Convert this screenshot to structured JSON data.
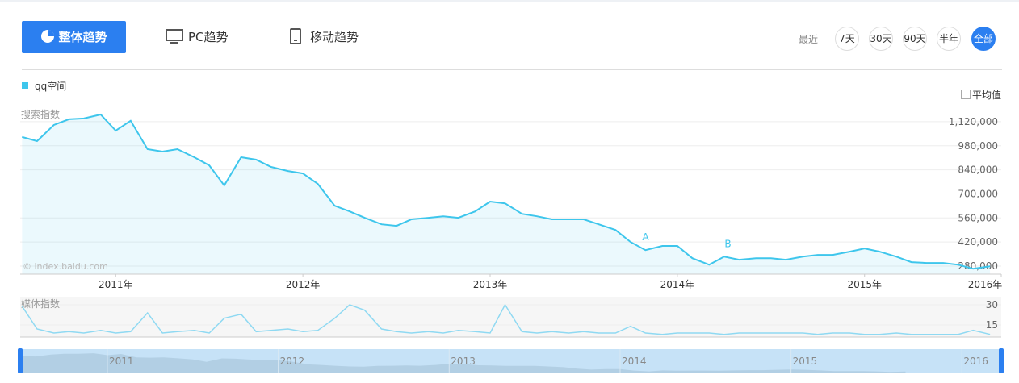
{
  "tabs": [
    "整体趋势",
    "PC趋势",
    "移动趋势"
  ],
  "range_label": "最近",
  "ranges": [
    "7天",
    "30天",
    "90天",
    "半年",
    "全部"
  ],
  "average_label": "平均值",
  "watermark": "© index.baidu.com",
  "chart_data": [
    {
      "type": "line",
      "title": "搜索指数",
      "x": [
        2010.5,
        2010.58,
        2010.67,
        2010.75,
        2010.83,
        2010.92,
        2011,
        2011.08,
        2011.17,
        2011.25,
        2011.33,
        2011.42,
        2011.5,
        2011.58,
        2011.67,
        2011.75,
        2011.83,
        2011.92,
        2012,
        2012.08,
        2012.17,
        2012.25,
        2012.33,
        2012.42,
        2012.5,
        2012.58,
        2012.67,
        2012.75,
        2012.83,
        2012.92,
        2013,
        2013.08,
        2013.17,
        2013.25,
        2013.33,
        2013.42,
        2013.5,
        2013.58,
        2013.67,
        2013.75,
        2013.83,
        2013.92,
        2014,
        2014.08,
        2014.17,
        2014.25,
        2014.33,
        2014.42,
        2014.5,
        2014.58,
        2014.67,
        2014.75,
        2014.83,
        2014.92,
        2015,
        2015.08,
        2015.17,
        2015.25,
        2015.33,
        2015.42,
        2015.5,
        2015.58,
        2015.67
      ],
      "series": [
        {
          "name": "qq空间",
          "color": "#3ec6ec",
          "values": [
            1031000,
            1007000,
            1101000,
            1134000,
            1139000,
            1162000,
            1068000,
            1125000,
            960000,
            946000,
            960000,
            913000,
            866000,
            749000,
            913000,
            899000,
            857000,
            833000,
            819000,
            758000,
            631000,
            598000,
            561000,
            523000,
            514000,
            552000,
            561000,
            570000,
            561000,
            598000,
            655000,
            645000,
            584000,
            570000,
            552000,
            552000,
            552000,
            523000,
            490000,
            420000,
            373000,
            397000,
            397000,
            326000,
            288000,
            335000,
            317000,
            326000,
            326000,
            317000,
            335000,
            345000,
            345000,
            364000,
            382000,
            364000,
            335000,
            303000,
            298000,
            298000,
            288000,
            265000,
            279000
          ]
        }
      ],
      "xlim": [
        2010.49,
        2015.73
      ],
      "xticks": [
        {
          "value": 2011,
          "label": "2011年"
        },
        {
          "value": 2012,
          "label": "2012年"
        },
        {
          "value": 2013,
          "label": "2013年"
        },
        {
          "value": 2014,
          "label": "2014年"
        },
        {
          "value": 2015,
          "label": "2015年"
        },
        {
          "value": 2016,
          "label": "2016年"
        }
      ],
      "ylim": [
        233000,
        1204000
      ],
      "yticks": [
        {
          "value": 280000,
          "label": "280,000"
        },
        {
          "value": 420000,
          "label": "420,000"
        },
        {
          "value": 560000,
          "label": "560,000"
        },
        {
          "value": 700000,
          "label": "700,000"
        },
        {
          "value": 840000,
          "label": "840,000"
        },
        {
          "value": 980000,
          "label": "980,000"
        },
        {
          "value": 1120000,
          "label": "1,120,000"
        }
      ],
      "annotations": [
        {
          "label": "A",
          "x": 2013.83
        },
        {
          "label": "B",
          "x": 2014.27
        }
      ]
    },
    {
      "type": "line",
      "title": "媒体指数",
      "x": [
        2010.5,
        2010.58,
        2010.67,
        2010.75,
        2010.83,
        2010.92,
        2011,
        2011.08,
        2011.17,
        2011.25,
        2011.33,
        2011.42,
        2011.5,
        2011.58,
        2011.67,
        2011.75,
        2011.83,
        2011.92,
        2012,
        2012.08,
        2012.17,
        2012.25,
        2012.33,
        2012.42,
        2012.5,
        2012.58,
        2012.67,
        2012.75,
        2012.83,
        2012.92,
        2013,
        2013.08,
        2013.17,
        2013.25,
        2013.33,
        2013.42,
        2013.5,
        2013.58,
        2013.67,
        2013.75,
        2013.83,
        2013.92,
        2014,
        2014.08,
        2014.17,
        2014.25,
        2014.33,
        2014.42,
        2014.5,
        2014.58,
        2014.67,
        2014.75,
        2014.83,
        2014.92,
        2015,
        2015.08,
        2015.17,
        2015.25,
        2015.33,
        2015.42,
        2015.5,
        2015.58,
        2015.67
      ],
      "series": [
        {
          "color": "#8fd9f2",
          "values": [
            29,
            12,
            9,
            10,
            9,
            11,
            9,
            10,
            24,
            9,
            10,
            11,
            9,
            20,
            23,
            10,
            11,
            12,
            10,
            11,
            20,
            30,
            26,
            12,
            10,
            9,
            10,
            9,
            11,
            10,
            9,
            30,
            10,
            9,
            10,
            9,
            10,
            9,
            9,
            14,
            9,
            8,
            9,
            9,
            9,
            8,
            9,
            9,
            9,
            9,
            9,
            8,
            9,
            9,
            8,
            8,
            9,
            8,
            8,
            8,
            8,
            11,
            8
          ]
        }
      ],
      "xlim": [
        2010.49,
        2015.73
      ],
      "ylim": [
        6,
        36
      ],
      "yticks": [
        15,
        30
      ]
    }
  ],
  "navigator": {
    "xlim": [
      2010.49,
      2016.23
    ],
    "xticks": [
      2011,
      2012,
      2013,
      2014,
      2015,
      2016
    ]
  }
}
